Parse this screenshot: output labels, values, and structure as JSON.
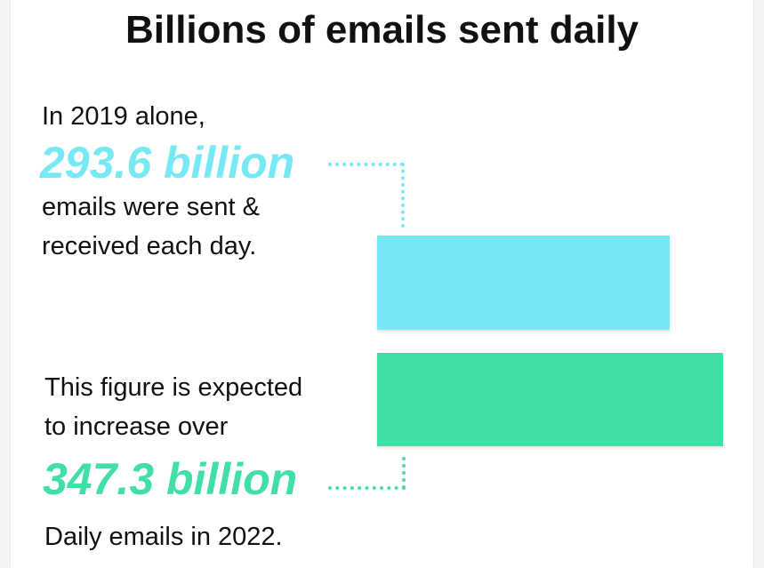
{
  "title": "Billions of emails sent daily",
  "colors": {
    "series_2019": "#77e9f5",
    "series_2022": "#40dfa6",
    "text": "#111111"
  },
  "block_2019": {
    "intro": "In 2019 alone,",
    "highlight": "293.6 billion",
    "line1": "emails were sent &",
    "line2": "received each day."
  },
  "block_2022": {
    "line1": "This figure is expected",
    "line2": "to increase over",
    "highlight": "347.3 billion",
    "outro": "Daily emails in 2022."
  },
  "chart_data": {
    "type": "bar",
    "orientation": "horizontal",
    "title": "Billions of emails sent daily",
    "categories": [
      "2019",
      "2022"
    ],
    "values": [
      293.6,
      347.3
    ],
    "unit": "billion",
    "grid": false
  }
}
